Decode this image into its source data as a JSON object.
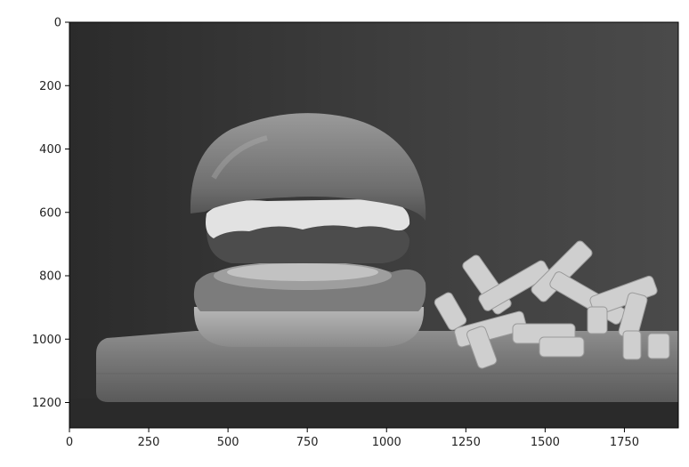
{
  "figure": {
    "x_ticks": [
      "0",
      "250",
      "500",
      "750",
      "1000",
      "1250",
      "1500",
      "1750"
    ],
    "y_ticks": [
      "0",
      "200",
      "400",
      "600",
      "800",
      "1000",
      "1200"
    ]
  },
  "image": {
    "subject": "grayscale photo of a cheeseburger with lettuce, tomato and onion on a wooden board next to a pile of french fries",
    "colors": {
      "background": "#3a3a3a",
      "frame": "#000000",
      "figure_bg": "#ffffff"
    }
  }
}
